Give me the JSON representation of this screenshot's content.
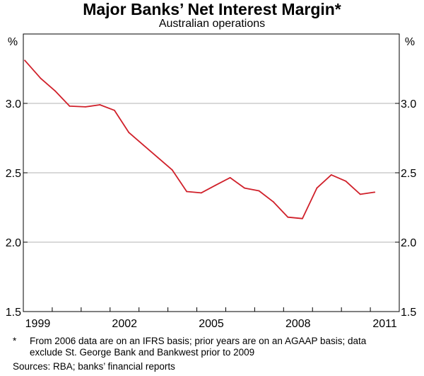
{
  "chart_data": {
    "type": "line",
    "title": "Major Banks’ Net Interest Margin*",
    "subtitle": "Australian operations",
    "left_unit": "%",
    "right_unit": "%",
    "ylim": [
      1.5,
      3.5
    ],
    "yticks": [
      1.5,
      2.0,
      2.5,
      3.0
    ],
    "ytick_labels": [
      "1.5",
      "2.0",
      "2.5",
      "3.0"
    ],
    "xlim": [
      1999,
      2012
    ],
    "xticks": [
      1999,
      2002,
      2005,
      2008,
      2011
    ],
    "xtick_labels": [
      "1999",
      "2002",
      "2005",
      "2008",
      "2011"
    ],
    "grid": true,
    "series": [
      {
        "name": "Net interest margin",
        "color": "#d0202a",
        "x": [
          1999.05,
          1999.6,
          2000.1,
          2000.6,
          2001.15,
          2001.65,
          2002.15,
          2002.65,
          2003.15,
          2003.65,
          2004.15,
          2004.65,
          2005.15,
          2005.65,
          2006.15,
          2006.65,
          2007.15,
          2007.65,
          2008.15,
          2008.65,
          2009.15,
          2009.65,
          2010.15,
          2010.65,
          2011.15
        ],
        "values": [
          3.31,
          3.18,
          3.09,
          2.98,
          2.975,
          2.99,
          2.95,
          2.79,
          2.7,
          2.61,
          2.52,
          2.365,
          2.355,
          2.41,
          2.465,
          2.39,
          2.37,
          2.29,
          2.18,
          2.17,
          2.39,
          2.485,
          2.44,
          2.345,
          2.36
        ]
      }
    ]
  },
  "footnote_marker": "*",
  "footnote_text": "From 2006 data are on an IFRS basis; prior years are on an AGAAP basis; data exclude St. George Bank and Bankwest prior to 2009",
  "sources": "Sources: RBA; banks’ financial reports",
  "colors": {
    "series": "#d0202a",
    "grid": "#b3b3b3",
    "axis": "#000000"
  }
}
